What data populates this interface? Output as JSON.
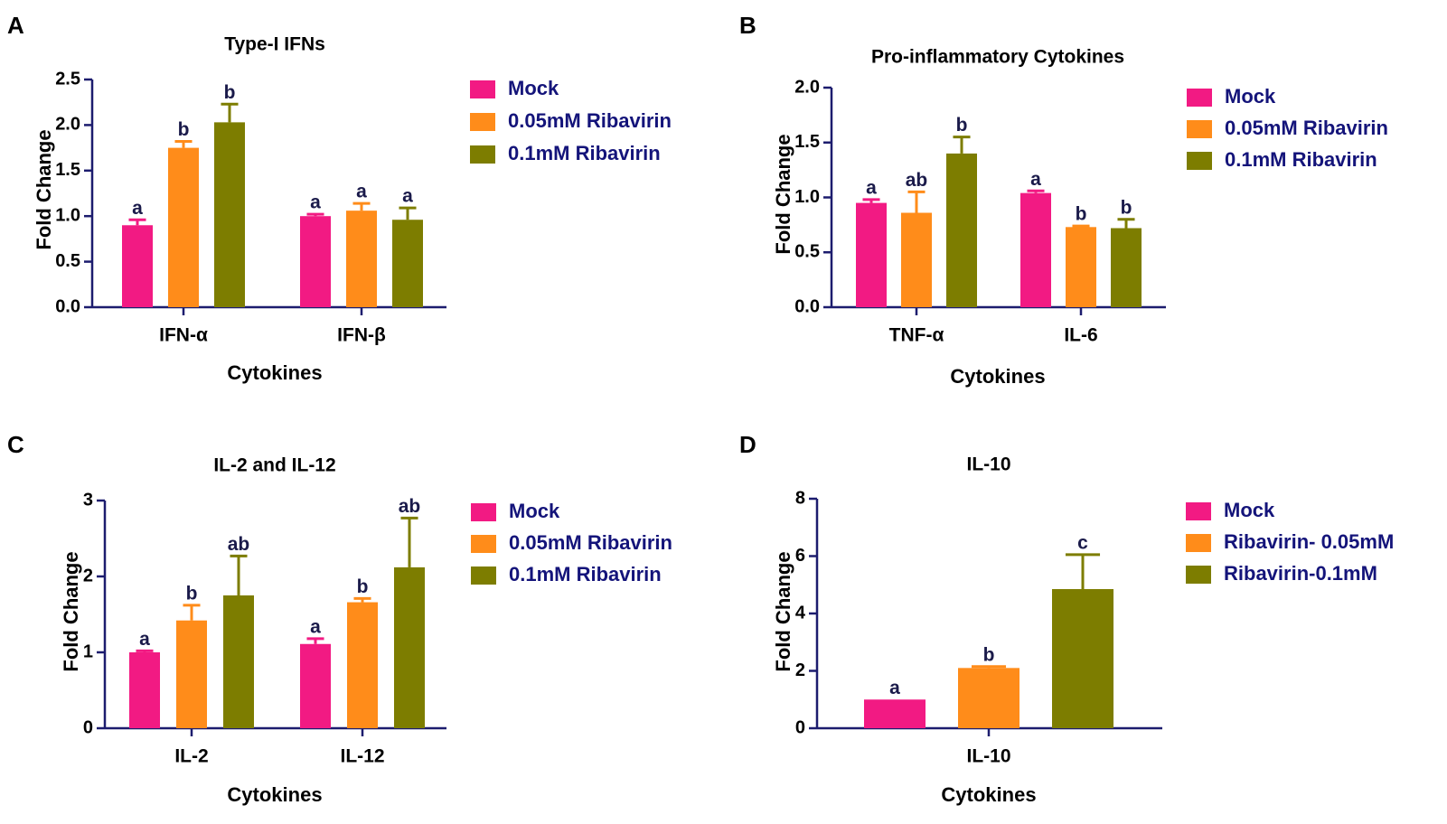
{
  "colors": {
    "mock": "#f21a83",
    "low": "#ff8c1a",
    "high": "#7d7d00",
    "axis": "#1c1c6e",
    "legend_text": "#14147a",
    "sig_text": "#1a1a4a"
  },
  "chart_data": [
    {
      "panel": "A",
      "type": "bar",
      "title": "Type-I IFNs",
      "xlabel": "Cytokines",
      "ylabel": "Fold Change",
      "ylim": [
        0,
        2.5
      ],
      "yticks": [
        "0.0",
        "0.5",
        "1.0",
        "1.5",
        "2.0",
        "2.5"
      ],
      "ytick_values": [
        0,
        0.5,
        1.0,
        1.5,
        2.0,
        2.5
      ],
      "categories": [
        "IFN-α",
        "IFN-β"
      ],
      "legend": [
        "Mock",
        "0.05mM Ribavirin",
        "0.1mM Ribavirin"
      ],
      "series": [
        {
          "name": "Mock",
          "color": "#f21a83",
          "values": [
            0.9,
            1.0
          ],
          "errors": [
            0.06,
            0.02
          ],
          "labels": [
            "a",
            "a"
          ]
        },
        {
          "name": "0.05mM Ribavirin",
          "color": "#ff8c1a",
          "values": [
            1.75,
            1.06
          ],
          "errors": [
            0.07,
            0.08
          ],
          "labels": [
            "b",
            "a"
          ]
        },
        {
          "name": "0.1mM Ribavirin",
          "color": "#7d7d00",
          "values": [
            2.03,
            0.96
          ],
          "errors": [
            0.2,
            0.13
          ],
          "labels": [
            "b",
            "a"
          ]
        }
      ]
    },
    {
      "panel": "B",
      "type": "bar",
      "title": "Pro-inflammatory Cytokines",
      "xlabel": "Cytokines",
      "ylabel": "Fold Change",
      "ylim": [
        0,
        2.0
      ],
      "yticks": [
        "0.0",
        "0.5",
        "1.0",
        "1.5",
        "2.0"
      ],
      "ytick_values": [
        0,
        0.5,
        1.0,
        1.5,
        2.0
      ],
      "categories": [
        "TNF-α",
        "IL-6"
      ],
      "legend": [
        "Mock",
        "0.05mM Ribavirin",
        "0.1mM Ribavirin"
      ],
      "series": [
        {
          "name": "Mock",
          "color": "#f21a83",
          "values": [
            0.95,
            1.04
          ],
          "errors": [
            0.03,
            0.02
          ],
          "labels": [
            "a",
            "a"
          ]
        },
        {
          "name": "0.05mM Ribavirin",
          "color": "#ff8c1a",
          "values": [
            0.86,
            0.73
          ],
          "errors": [
            0.19,
            0.01
          ],
          "labels": [
            "ab",
            "b"
          ]
        },
        {
          "name": "0.1mM Ribavirin",
          "color": "#7d7d00",
          "values": [
            1.4,
            0.72
          ],
          "errors": [
            0.15,
            0.08
          ],
          "labels": [
            "b",
            "b"
          ]
        }
      ]
    },
    {
      "panel": "C",
      "type": "bar",
      "title": "IL-2 and IL-12",
      "xlabel": "Cytokines",
      "ylabel": "Fold Change",
      "ylim": [
        0,
        3
      ],
      "yticks": [
        "0",
        "1",
        "2",
        "3"
      ],
      "ytick_values": [
        0,
        1,
        2,
        3
      ],
      "categories": [
        "IL-2",
        "IL-12"
      ],
      "legend": [
        "Mock",
        "0.05mM Ribavirin",
        "0.1mM Ribavirin"
      ],
      "series": [
        {
          "name": "Mock",
          "color": "#f21a83",
          "values": [
            1.0,
            1.11
          ],
          "errors": [
            0.02,
            0.07
          ],
          "labels": [
            "a",
            "a"
          ]
        },
        {
          "name": "0.05mM Ribavirin",
          "color": "#ff8c1a",
          "values": [
            1.42,
            1.66
          ],
          "errors": [
            0.2,
            0.05
          ],
          "labels": [
            "b",
            "b"
          ]
        },
        {
          "name": "0.1mM Ribavirin",
          "color": "#7d7d00",
          "values": [
            1.75,
            2.12
          ],
          "errors": [
            0.52,
            0.65
          ],
          "labels": [
            "ab",
            "ab"
          ]
        }
      ]
    },
    {
      "panel": "D",
      "type": "bar",
      "title": "IL-10",
      "xlabel": "Cytokines",
      "ylabel": "Fold Change",
      "ylim": [
        0,
        8
      ],
      "yticks": [
        "0",
        "2",
        "4",
        "6",
        "8"
      ],
      "ytick_values": [
        0,
        2,
        4,
        6,
        8
      ],
      "categories": [
        "IL-10"
      ],
      "legend": [
        "Mock",
        "Ribavirin- 0.05mM",
        "Ribavirin-0.1mM"
      ],
      "series": [
        {
          "name": "Mock",
          "color": "#f21a83",
          "values": [
            1.0
          ],
          "errors": [
            0.0
          ],
          "labels": [
            "a"
          ]
        },
        {
          "name": "Ribavirin- 0.05mM",
          "color": "#ff8c1a",
          "values": [
            2.1
          ],
          "errors": [
            0.05
          ],
          "labels": [
            "b"
          ]
        },
        {
          "name": "Ribavirin-0.1mM",
          "color": "#7d7d00",
          "values": [
            4.85
          ],
          "errors": [
            1.2
          ],
          "labels": [
            "c"
          ]
        }
      ]
    }
  ]
}
